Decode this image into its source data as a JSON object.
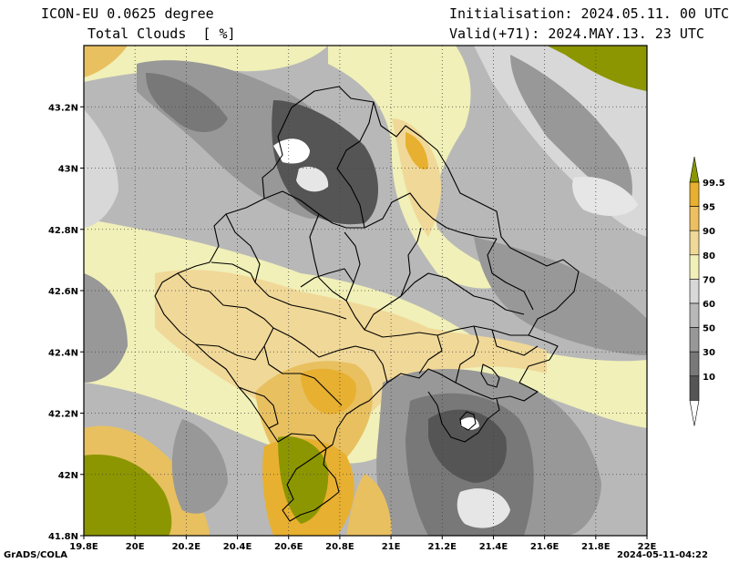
{
  "header": {
    "model": "ICON-EU 0.0625 degree",
    "variable": "Total Clouds  [ %]",
    "init": "Initialisation: 2024.05.11. 00 UTC",
    "valid": "Valid(+71): 2024.MAY.13. 23 UTC"
  },
  "axes": {
    "lon_ticks": [
      "19.8E",
      "20E",
      "20.2E",
      "20.4E",
      "20.6E",
      "20.8E",
      "21E",
      "21.2E",
      "21.4E",
      "21.6E",
      "21.8E",
      "22E"
    ],
    "lat_ticks": [
      "43.2N",
      "43N",
      "42.8N",
      "42.6N",
      "42.4N",
      "42.2N",
      "42N",
      "41.8N"
    ],
    "lon_range": [
      19.8,
      22.0
    ],
    "lat_range": [
      41.8,
      43.4
    ],
    "grid": "dotted"
  },
  "colorbar": {
    "labels": [
      "99.5",
      "95",
      "90",
      "80",
      "70",
      "60",
      "50",
      "30",
      "10"
    ],
    "colors": [
      "#8c9600",
      "#e8b030",
      "#ecc060",
      "#f0d898",
      "#f0f0b8",
      "#d8d8d8",
      "#b8b8b8",
      "#989898",
      "#787878",
      "#555555",
      "#ffffff"
    ]
  },
  "footer": {
    "left": "GrADS/COLA",
    "right": "2024-05-11-04:22"
  }
}
